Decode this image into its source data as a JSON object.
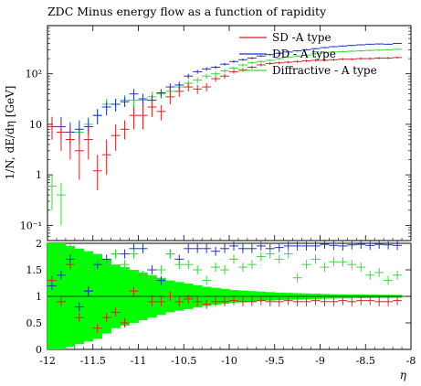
{
  "chart_data": {
    "type": "scatter",
    "title": "ZDC Minus energy flow as a function of rapidity",
    "xlabel": "η",
    "ylabel": "1/N, dE/dη [GeV]",
    "xlim": [
      -12,
      -8
    ],
    "ylim": [
      0.05,
      900
    ],
    "yscale": "log",
    "ratio_ylim": [
      0,
      2
    ],
    "x_ticks": [
      {
        "value": -12,
        "label": "-12"
      },
      {
        "value": -11.5,
        "label": "-11.5"
      },
      {
        "value": -11,
        "label": "-11"
      },
      {
        "value": -10.5,
        "label": "-10.5"
      },
      {
        "value": -10,
        "label": "-10"
      },
      {
        "value": -9.5,
        "label": "-9.5"
      },
      {
        "value": -9,
        "label": "-9"
      },
      {
        "value": -8.5,
        "label": "-8.5"
      },
      {
        "value": -8,
        "label": "-8"
      }
    ],
    "y_ticks": [
      {
        "value": 0.1,
        "label": "10⁻¹"
      },
      {
        "value": 1,
        "label": "1"
      },
      {
        "value": 10,
        "label": "10"
      },
      {
        "value": 100,
        "label": "10²"
      }
    ],
    "ratio_ticks": [
      {
        "value": 0,
        "label": "0"
      },
      {
        "value": 0.5,
        "label": "0.5"
      },
      {
        "value": 1,
        "label": "1"
      },
      {
        "value": 1.5,
        "label": "1.5"
      },
      {
        "value": 2,
        "label": "2"
      }
    ],
    "legend_position": "top-right",
    "bin_width": 0.1,
    "series": [
      {
        "name": "SD -A type",
        "color": "#dd2222",
        "x": [
          -11.95,
          -11.85,
          -11.75,
          -11.65,
          -11.55,
          -11.45,
          -11.35,
          -11.25,
          -11.15,
          -11.05,
          -10.95,
          -10.85,
          -10.75,
          -10.65,
          -10.55,
          -10.45,
          -10.35,
          -10.25,
          -10.15,
          -10.05,
          -9.95,
          -9.85,
          -9.75,
          -9.65,
          -9.55,
          -9.45,
          -9.35,
          -9.25,
          -9.15,
          -9.05,
          -8.95,
          -8.85,
          -8.75,
          -8.65,
          -8.55,
          -8.45,
          -8.35,
          -8.25,
          -8.15
        ],
        "y": [
          9,
          7,
          5,
          3,
          5,
          1.2,
          2.5,
          6,
          8,
          15,
          15,
          22,
          18,
          35,
          45,
          55,
          50,
          55,
          80,
          90,
          110,
          120,
          135,
          150,
          160,
          165,
          170,
          175,
          180,
          185,
          185,
          190,
          195,
          195,
          200,
          200,
          205,
          205,
          210
        ],
        "ylow": [
          5,
          3,
          2,
          0.8,
          2,
          0.5,
          1,
          3,
          5,
          8,
          8,
          14,
          12,
          25,
          35,
          45,
          40,
          45,
          70,
          80,
          100,
          110,
          125,
          140,
          150,
          155,
          160,
          165,
          170,
          175,
          175,
          180,
          185,
          185,
          190,
          190,
          195,
          195,
          200
        ],
        "yhigh": [
          14,
          12,
          9,
          6,
          9,
          2.5,
          5,
          10,
          12,
          22,
          25,
          30,
          24,
          45,
          55,
          65,
          60,
          65,
          90,
          100,
          120,
          130,
          145,
          160,
          170,
          175,
          180,
          185,
          190,
          195,
          195,
          200,
          205,
          205,
          210,
          210,
          215,
          215,
          220
        ]
      },
      {
        "name": "DD - A type",
        "color": "#2233cc",
        "x": [
          -11.95,
          -11.85,
          -11.75,
          -11.65,
          -11.55,
          -11.45,
          -11.35,
          -11.25,
          -11.15,
          -11.05,
          -10.95,
          -10.85,
          -10.75,
          -10.65,
          -10.55,
          -10.45,
          -10.35,
          -10.25,
          -10.15,
          -10.05,
          -9.95,
          -9.85,
          -9.75,
          -9.65,
          -9.55,
          -9.45,
          -9.35,
          -9.25,
          -9.15,
          -9.05,
          -8.95,
          -8.85,
          -8.75,
          -8.65,
          -8.55,
          -8.45,
          -8.35,
          -8.25,
          -8.15
        ],
        "y": [
          9,
          9,
          7,
          8,
          9,
          15,
          22,
          25,
          28,
          40,
          32,
          30,
          42,
          55,
          60,
          90,
          110,
          125,
          135,
          155,
          175,
          190,
          205,
          225,
          240,
          255,
          270,
          285,
          300,
          315,
          330,
          345,
          355,
          365,
          375,
          385,
          390,
          385,
          400
        ],
        "ylow": [
          5,
          5,
          4,
          5,
          6,
          10,
          15,
          18,
          22,
          30,
          25,
          24,
          34,
          45,
          50,
          80,
          100,
          115,
          125,
          145,
          165,
          180,
          195,
          215,
          230,
          245,
          260,
          275,
          290,
          305,
          320,
          335,
          345,
          355,
          365,
          375,
          380,
          375,
          390
        ],
        "yhigh": [
          14,
          14,
          11,
          12,
          13,
          20,
          28,
          32,
          35,
          50,
          40,
          38,
          50,
          65,
          70,
          100,
          120,
          135,
          145,
          165,
          185,
          200,
          215,
          235,
          250,
          265,
          280,
          295,
          310,
          325,
          340,
          355,
          365,
          375,
          385,
          395,
          400,
          395,
          410
        ]
      },
      {
        "name": "Diffractive - A type",
        "color": "#33dd33",
        "x": [
          -11.95,
          -11.85,
          -11.75,
          -11.65,
          -11.55,
          -11.45,
          -11.35,
          -11.25,
          -11.15,
          -11.05,
          -10.95,
          -10.85,
          -10.75,
          -10.65,
          -10.55,
          -10.45,
          -10.35,
          -10.25,
          -10.15,
          -10.05,
          -9.95,
          -9.85,
          -9.75,
          -9.65,
          -9.55,
          -9.45,
          -9.35,
          -9.25,
          -9.15,
          -9.05,
          -8.95,
          -8.85,
          -8.75,
          -8.65,
          -8.55,
          -8.45,
          -8.35,
          -8.25,
          -8.15
        ],
        "y": [
          0.6,
          0.4,
          5,
          7,
          10,
          15,
          25,
          25,
          30,
          30,
          30,
          35,
          40,
          45,
          55,
          65,
          75,
          90,
          100,
          115,
          130,
          150,
          165,
          175,
          185,
          200,
          215,
          225,
          235,
          250,
          260,
          270,
          275,
          280,
          285,
          290,
          295,
          300,
          305
        ],
        "ylow": [
          0.2,
          0.1,
          3,
          4,
          7,
          10,
          18,
          18,
          22,
          22,
          22,
          26,
          32,
          37,
          45,
          55,
          65,
          80,
          90,
          105,
          120,
          140,
          155,
          165,
          175,
          190,
          205,
          215,
          225,
          240,
          250,
          260,
          265,
          270,
          275,
          280,
          285,
          290,
          295
        ],
        "yhigh": [
          1.0,
          0.7,
          8,
          10,
          14,
          20,
          32,
          32,
          38,
          38,
          38,
          44,
          48,
          55,
          65,
          75,
          85,
          100,
          110,
          125,
          140,
          160,
          175,
          185,
          195,
          210,
          225,
          235,
          245,
          260,
          270,
          280,
          285,
          290,
          295,
          300,
          305,
          310,
          315
        ]
      }
    ],
    "ratio": {
      "band_color": "#00ff00",
      "band_halfwidth": [
        1.0,
        1.0,
        0.95,
        0.9,
        0.85,
        0.8,
        0.7,
        0.6,
        0.55,
        0.5,
        0.45,
        0.4,
        0.35,
        0.3,
        0.27,
        0.24,
        0.21,
        0.18,
        0.16,
        0.14,
        0.12,
        0.11,
        0.1,
        0.09,
        0.08,
        0.07,
        0.065,
        0.06,
        0.055,
        0.05,
        0.045,
        0.04,
        0.038,
        0.036,
        0.034,
        0.032,
        0.03,
        0.028,
        0.026
      ],
      "sd": [
        1.3,
        0.9,
        1.6,
        0.6,
        1.1,
        0.4,
        0.6,
        0.7,
        0.5,
        1.1,
        1.4,
        0.9,
        0.9,
        1.0,
        0.9,
        0.95,
        0.9,
        0.85,
        0.9,
        0.9,
        0.92,
        0.9,
        0.9,
        0.92,
        0.9,
        0.9,
        0.92,
        0.9,
        0.9,
        0.92,
        0.9,
        0.9,
        0.92,
        0.9,
        0.92,
        0.92,
        0.9,
        0.9,
        0.92
      ],
      "dd": [
        1.2,
        1.4,
        1.7,
        0.8,
        1.1,
        1.6,
        1.7,
        1.8,
        1.8,
        1.9,
        1.9,
        1.5,
        1.3,
        1.8,
        1.7,
        1.9,
        1.9,
        1.9,
        1.85,
        1.9,
        1.95,
        1.9,
        1.9,
        1.95,
        1.9,
        1.92,
        1.95,
        1.95,
        1.95,
        1.95,
        1.98,
        1.96,
        1.95,
        1.97,
        1.98,
        1.96,
        1.98,
        1.97,
        1.96
      ],
      "diff": [
        1.6,
        1.8,
        1.9,
        1.6,
        1.5,
        1.7,
        1.6,
        1.8,
        1.6,
        1.8,
        1.4,
        1.3,
        1.5,
        1.8,
        1.6,
        1.6,
        1.5,
        1.3,
        1.55,
        1.5,
        1.7,
        1.55,
        1.6,
        1.75,
        1.8,
        1.7,
        1.8,
        1.35,
        1.6,
        1.7,
        1.55,
        1.65,
        1.65,
        1.6,
        1.55,
        1.4,
        1.45,
        1.3,
        1.4
      ]
    }
  }
}
